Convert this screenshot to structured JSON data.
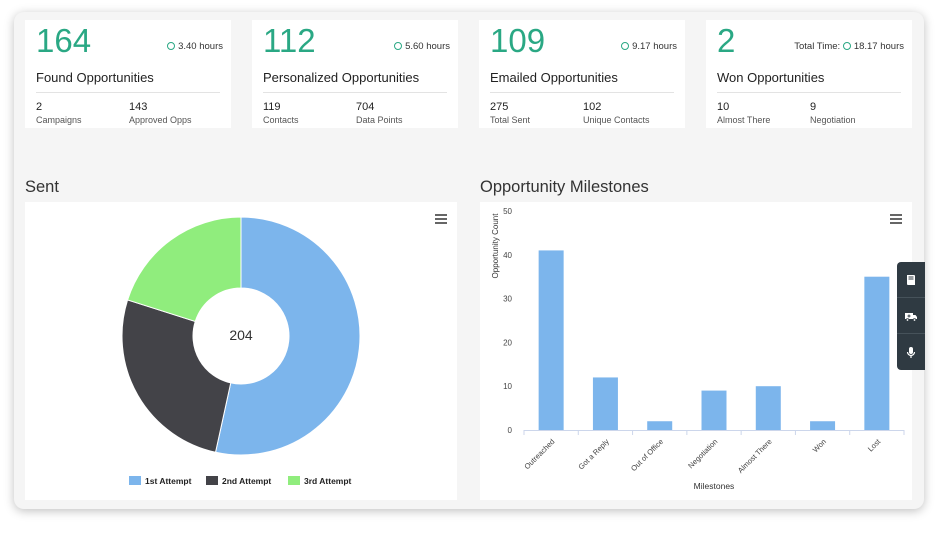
{
  "stat_cards": [
    {
      "value": "164",
      "time_prefix": "",
      "time": "3.40 hours",
      "label": "Found Opportunities",
      "stats": [
        {
          "n": "2",
          "l": "Campaigns"
        },
        {
          "n": "143",
          "l": "Approved Opps"
        }
      ]
    },
    {
      "value": "112",
      "time_prefix": "",
      "time": "5.60 hours",
      "label": "Personalized Opportunities",
      "stats": [
        {
          "n": "119",
          "l": "Contacts"
        },
        {
          "n": "704",
          "l": "Data Points"
        }
      ]
    },
    {
      "value": "109",
      "time_prefix": "",
      "time": "9.17 hours",
      "label": "Emailed Opportunities",
      "stats": [
        {
          "n": "275",
          "l": "Total Sent"
        },
        {
          "n": "102",
          "l": "Unique Contacts"
        }
      ]
    },
    {
      "value": "2",
      "time_prefix": "Total Time:",
      "time": "18.17 hours",
      "label": "Won Opportunities",
      "stats": [
        {
          "n": "10",
          "l": "Almost There"
        },
        {
          "n": "9",
          "l": "Negotiation"
        }
      ]
    }
  ],
  "sent_section": {
    "title": "Sent"
  },
  "milestones_section": {
    "title": "Opportunity Milestones"
  },
  "colors": {
    "accent": "#2aa884",
    "blue": "#7cb5ec",
    "dark": "#434348",
    "green": "#90ed7d"
  },
  "chart_data": [
    {
      "type": "pie",
      "center_label": "204",
      "categories": [
        "1st Attempt",
        "2nd Attempt",
        "3rd Attempt"
      ],
      "values": [
        109,
        54,
        41
      ],
      "colors": [
        "#7cb5ec",
        "#434348",
        "#90ed7d"
      ],
      "legend": "bottom"
    },
    {
      "type": "bar",
      "categories": [
        "Outreached",
        "Got a Reply",
        "Out of Office",
        "Negotiation",
        "Almost There",
        "Won",
        "Lost"
      ],
      "values": [
        41,
        12,
        2,
        9,
        10,
        2,
        35
      ],
      "xlabel": "Milestones",
      "ylabel": "Opportunity Count",
      "ylim": [
        0,
        50
      ],
      "yticks": [
        "0",
        "10",
        "20",
        "30",
        "40",
        "50"
      ],
      "grid": false
    }
  ],
  "side_tools": [
    {
      "icon": "book-icon"
    },
    {
      "icon": "ambulance-icon"
    },
    {
      "icon": "microphone-icon"
    }
  ]
}
